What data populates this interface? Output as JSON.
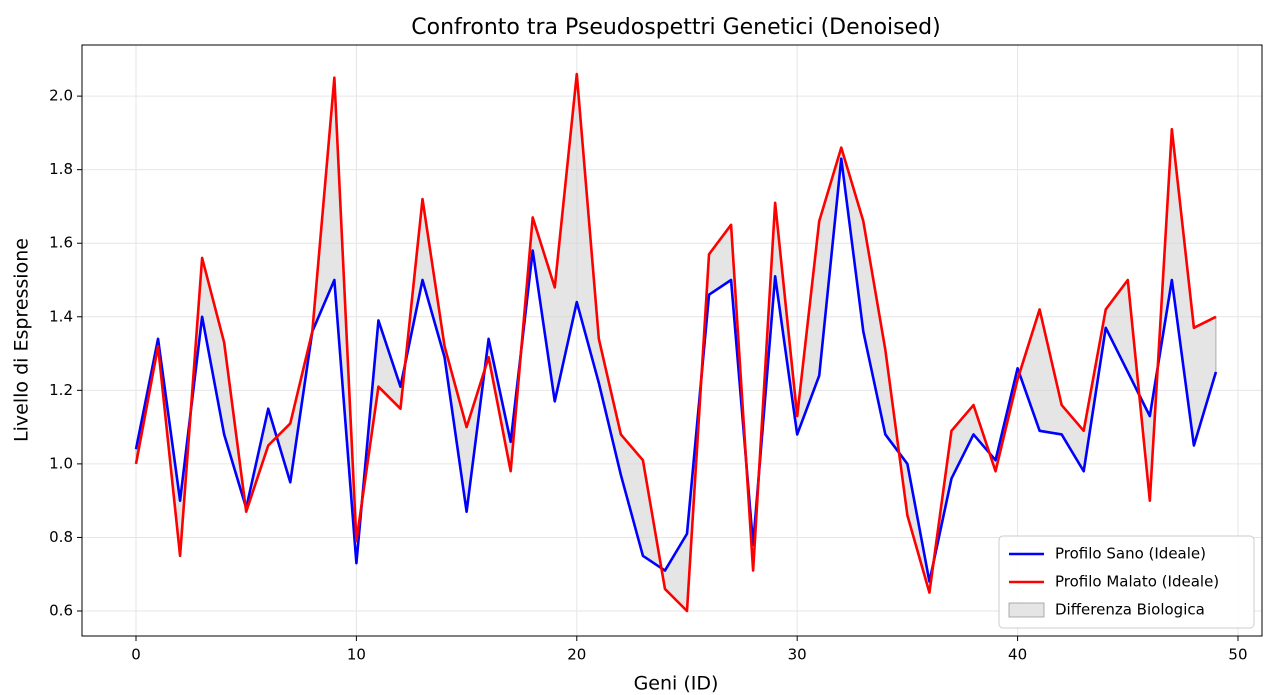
{
  "chart_data": {
    "type": "line",
    "title": "Confronto tra Pseudospettri Genetici (Denoised)",
    "x_label": "Geni (ID)",
    "y_label": "Livello di Espressione",
    "x": [
      0,
      1,
      2,
      3,
      4,
      5,
      6,
      7,
      8,
      9,
      10,
      11,
      12,
      13,
      14,
      15,
      16,
      17,
      18,
      19,
      20,
      21,
      22,
      23,
      24,
      25,
      26,
      27,
      28,
      29,
      30,
      31,
      32,
      33,
      34,
      35,
      36,
      37,
      38,
      39,
      40,
      41,
      42,
      43,
      44,
      45,
      46,
      47,
      48,
      49
    ],
    "series": [
      {
        "name": "Profilo Sano (Ideale)",
        "color": "#0000ff",
        "values": [
          1.04,
          1.34,
          0.9,
          1.4,
          1.08,
          0.88,
          1.15,
          0.95,
          1.36,
          1.5,
          0.73,
          1.39,
          1.21,
          1.5,
          1.29,
          0.87,
          1.34,
          1.06,
          1.58,
          1.17,
          1.44,
          1.22,
          0.97,
          0.75,
          0.71,
          0.81,
          1.46,
          1.5,
          0.78,
          1.51,
          1.08,
          1.24,
          1.83,
          1.36,
          1.08,
          1.0,
          0.68,
          0.96,
          1.08,
          1.01,
          1.26,
          1.09,
          1.08,
          0.98,
          1.37,
          1.25,
          1.13,
          1.5,
          1.05,
          1.25
        ]
      },
      {
        "name": "Profilo Malato (Ideale)",
        "color": "#ff0000",
        "values": [
          1.0,
          1.32,
          0.75,
          1.56,
          1.33,
          0.87,
          1.05,
          1.11,
          1.36,
          2.05,
          0.79,
          1.21,
          1.15,
          1.72,
          1.32,
          1.1,
          1.29,
          0.98,
          1.67,
          1.48,
          2.06,
          1.34,
          1.08,
          1.01,
          0.66,
          0.6,
          1.57,
          1.65,
          0.71,
          1.71,
          1.13,
          1.66,
          1.86,
          1.66,
          1.31,
          0.86,
          0.65,
          1.09,
          1.16,
          0.98,
          1.23,
          1.42,
          1.16,
          1.09,
          1.42,
          1.5,
          0.9,
          1.91,
          1.37,
          1.4
        ]
      }
    ],
    "fill_between": {
      "name": "Differenza Biologica",
      "color": "#d3d3d3"
    },
    "xlim": [
      -2.45,
      51.09
    ],
    "ylim": [
      0.532,
      2.139
    ],
    "xticks": [
      0,
      10,
      20,
      30,
      40,
      50
    ],
    "yticks": [
      0.6,
      0.8,
      {
        "value": 1,
        "label": "1.0"
      },
      1.2,
      1.4,
      1.6,
      1.8,
      {
        "value": 2,
        "label": "2.0"
      }
    ],
    "grid": true,
    "legend": "lower right"
  }
}
